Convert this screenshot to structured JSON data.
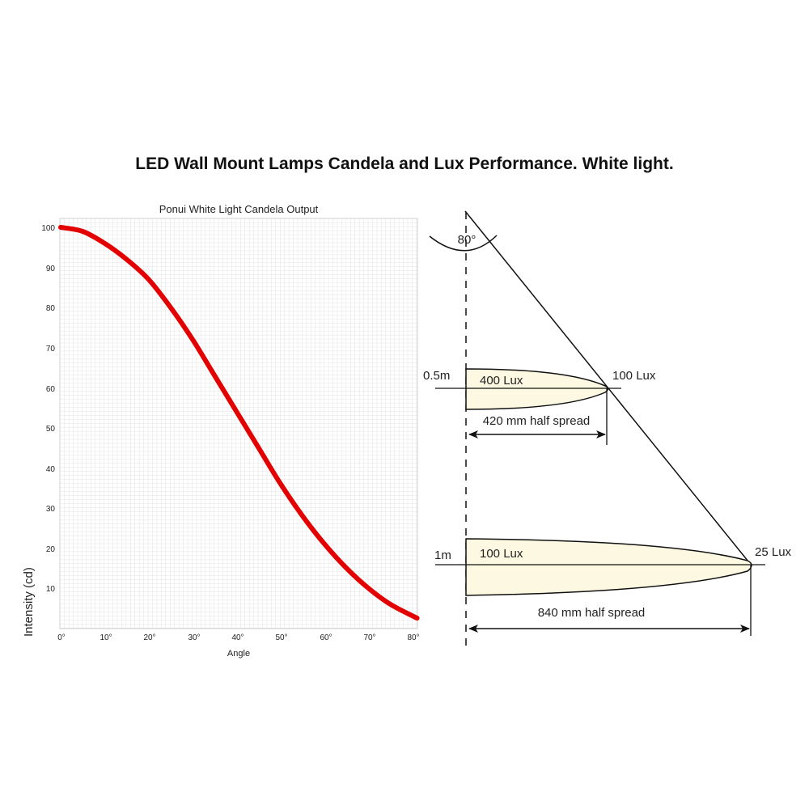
{
  "page": {
    "title": "LED Wall Mount Lamps Candela and Lux Performance. White light."
  },
  "chart_data": {
    "type": "line",
    "title": "Ponui White Light Candela Output",
    "xlabel": "Angle",
    "ylabel": "Intensity (cd)",
    "x": [
      0,
      5,
      10,
      15,
      20,
      25,
      30,
      35,
      40,
      45,
      50,
      55,
      60,
      65,
      70,
      75,
      81
    ],
    "series": [
      {
        "name": "Candela Output",
        "color": "#e30000",
        "values": [
          100,
          99,
          96,
          92,
          87,
          80,
          72,
          63,
          54,
          45,
          36,
          28,
          21,
          15,
          10,
          6,
          2.6
        ]
      }
    ],
    "xlim": [
      0,
      81
    ],
    "ylim": [
      0,
      100
    ],
    "x_ticks": [
      "0°",
      "10°",
      "20°",
      "30°",
      "40°",
      "50°",
      "60°",
      "70°",
      "80°"
    ],
    "y_ticks": [
      "100",
      "90",
      "80",
      "70",
      "60",
      "50",
      "40",
      "30",
      "20",
      "10"
    ],
    "grid": true,
    "legend": "none"
  },
  "diagram": {
    "beam_angle": "80°",
    "levels": [
      {
        "distance": "0.5m",
        "center_lux": "400 Lux",
        "edge_lux": "100 Lux",
        "spread": "420 mm half spread"
      },
      {
        "distance": "1m",
        "center_lux": "100 Lux",
        "edge_lux": "25 Lux",
        "spread": "840 mm half spread"
      }
    ],
    "fill_color": "#fdf8e1"
  }
}
